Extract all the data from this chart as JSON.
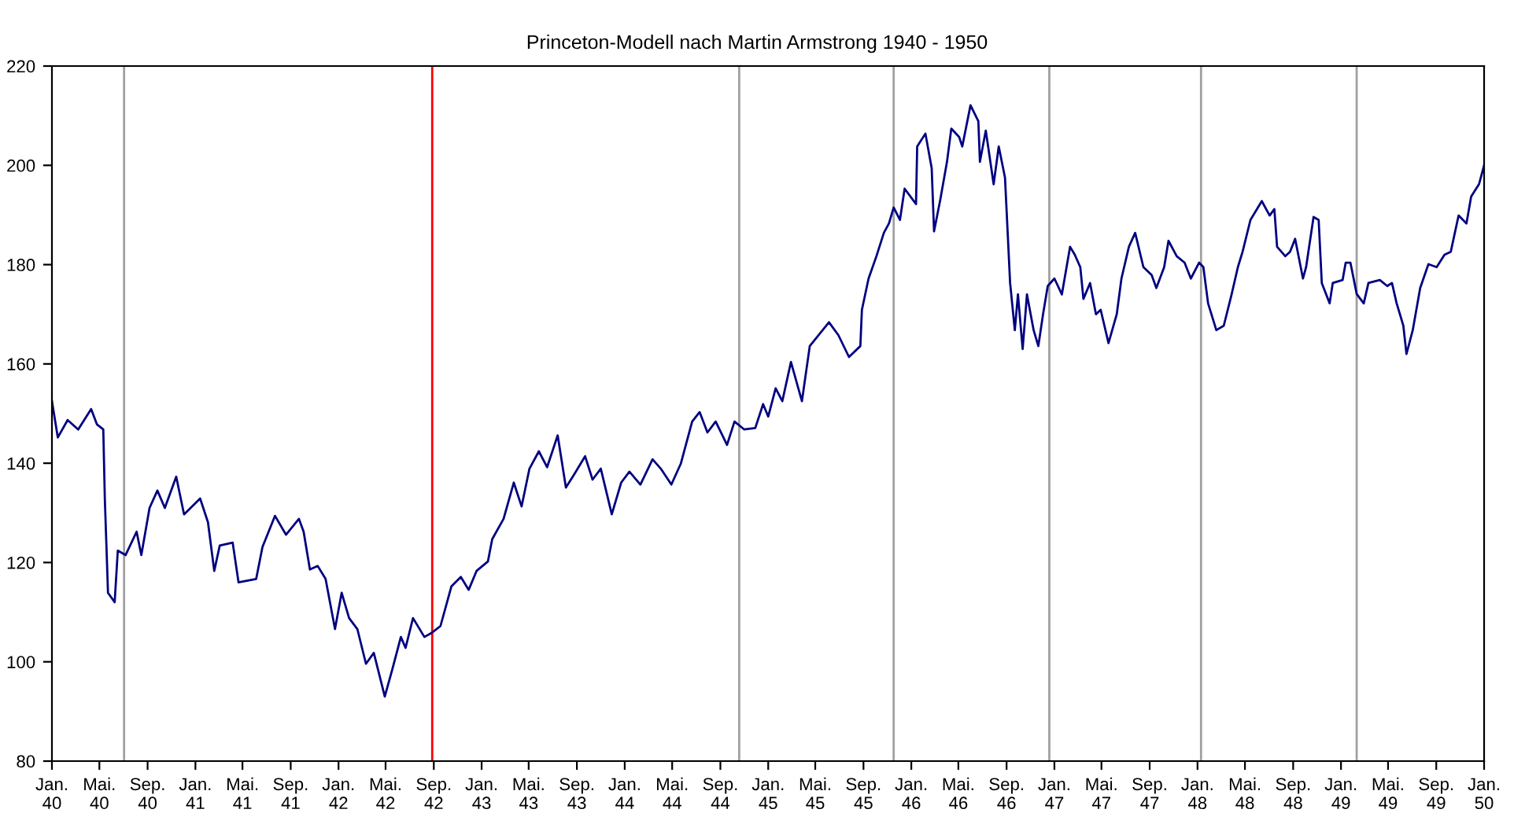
{
  "chart_data": {
    "type": "line",
    "title": "Princeton-Modell nach Martin Armstrong 1940 - 1950",
    "x": [
      "1940-01-01",
      "1940-01-16",
      "1940-02-10",
      "1940-03-08",
      "1940-04-10",
      "1940-04-25",
      "1940-05-11",
      "1940-05-15",
      "1940-05-19",
      "1940-05-23",
      "1940-06-09",
      "1940-06-17",
      "1940-07-07",
      "1940-08-04",
      "1940-08-16",
      "1940-09-06",
      "1940-09-26",
      "1940-10-15",
      "1940-11-13",
      "1940-12-03",
      "1941-01-13",
      "1941-02-02",
      "1941-02-18",
      "1941-03-04",
      "1941-04-06",
      "1941-04-21",
      "1941-06-05",
      "1941-06-21",
      "1941-07-23",
      "1941-08-20",
      "1941-09-22",
      "1941-10-04",
      "1941-10-20",
      "1941-11-09",
      "1941-11-29",
      "1941-12-23",
      "1942-01-09",
      "1942-01-28",
      "1942-02-18",
      "1942-03-12",
      "1942-04-01",
      "1942-04-29",
      "1942-05-19",
      "1942-06-09",
      "1942-06-21",
      "1942-07-10",
      "1942-08-08",
      "1942-08-28",
      "1942-09-18",
      "1942-10-16",
      "1942-11-09",
      "1942-11-29",
      "1942-12-19",
      "1943-01-17",
      "1943-01-28",
      "1943-02-26",
      "1943-03-24",
      "1943-04-13",
      "1943-05-03",
      "1943-05-27",
      "1943-06-17",
      "1943-07-14",
      "1943-08-04",
      "1943-08-24",
      "1943-09-22",
      "1943-10-11",
      "1943-11-01",
      "1943-11-29",
      "1943-12-23",
      "1944-01-13",
      "1944-02-10",
      "1944-03-12",
      "1944-04-02",
      "1944-04-29",
      "1944-05-23",
      "1944-06-21",
      "1944-07-10",
      "1944-07-30",
      "1944-08-20",
      "1944-09-18",
      "1944-10-07",
      "1944-11-01",
      "1944-11-29",
      "1944-12-19",
      "1945-01-01",
      "1945-01-20",
      "1945-02-06",
      "1945-02-28",
      "1945-03-28",
      "1945-04-17",
      "1945-06-05",
      "1945-06-29",
      "1945-07-26",
      "1945-08-24",
      "1945-08-28",
      "1945-09-14",
      "1945-10-04",
      "1945-10-23",
      "1945-11-05",
      "1945-11-17",
      "1945-12-03",
      "1945-12-15",
      "1946-01-13",
      "1946-01-16",
      "1946-02-06",
      "1946-02-22",
      "1946-02-28",
      "1946-03-16",
      "1946-04-02",
      "1946-04-13",
      "1946-05-03",
      "1946-05-11",
      "1946-06-01",
      "1946-06-21",
      "1946-06-25",
      "1946-07-10",
      "1946-07-30",
      "1946-08-12",
      "1946-08-28",
      "1946-09-10",
      "1946-09-22",
      "1946-09-30",
      "1946-10-12",
      "1946-10-23",
      "1946-11-09",
      "1946-11-21",
      "1946-12-03",
      "1946-12-15",
      "1947-01-01",
      "1947-01-20",
      "1947-02-10",
      "1947-02-22",
      "1947-03-08",
      "1947-03-16",
      "1947-04-02",
      "1947-04-17",
      "1947-04-29",
      "1947-05-19",
      "1947-06-09",
      "1947-06-21",
      "1947-07-10",
      "1947-07-26",
      "1947-08-16",
      "1947-09-06",
      "1947-09-18",
      "1947-10-08",
      "1947-10-19",
      "1947-11-09",
      "1947-11-29",
      "1947-12-15",
      "1948-01-05",
      "1948-01-16",
      "1948-01-28",
      "1948-02-18",
      "1948-03-08",
      "1948-03-28",
      "1948-04-13",
      "1948-04-25",
      "1948-05-15",
      "1948-06-13",
      "1948-07-03",
      "1948-07-15",
      "1948-07-22",
      "1948-08-12",
      "1948-08-24",
      "1948-09-06",
      "1948-09-26",
      "1948-10-04",
      "1948-10-23",
      "1948-11-05",
      "1948-11-13",
      "1948-12-03",
      "1948-12-11",
      "1949-01-05",
      "1949-01-13",
      "1949-01-25",
      "1949-02-10",
      "1949-02-28",
      "1949-03-12",
      "1949-04-10",
      "1949-04-29",
      "1949-05-11",
      "1949-05-23",
      "1949-06-09",
      "1949-06-17",
      "1949-07-03",
      "1949-07-22",
      "1949-08-12",
      "1949-09-02",
      "1949-09-22",
      "1949-10-08",
      "1949-10-28",
      "1949-11-17",
      "1949-11-29",
      "1949-12-19",
      "1950-01-01"
    ],
    "series": [
      {
        "color": "#000080",
        "values": [
          152.5,
          145.2,
          148.7,
          146.8,
          150.9,
          147.8,
          146.8,
          132.6,
          123.4,
          113.9,
          112.0,
          122.4,
          121.5,
          126.2,
          121.5,
          131.0,
          134.5,
          131.0,
          137.3,
          129.7,
          132.9,
          128.1,
          118.3,
          123.4,
          124.0,
          116.0,
          116.7,
          123.1,
          129.4,
          125.6,
          128.8,
          126.2,
          118.6,
          119.3,
          116.7,
          106.6,
          113.9,
          108.8,
          106.6,
          99.6,
          101.8,
          93.0,
          98.7,
          105.0,
          102.8,
          108.8,
          105.0,
          105.9,
          107.2,
          115.2,
          117.1,
          114.5,
          118.3,
          120.2,
          124.7,
          128.8,
          136.1,
          131.3,
          138.9,
          142.4,
          139.2,
          145.6,
          135.1,
          137.6,
          141.4,
          136.7,
          138.9,
          129.7,
          136.1,
          138.3,
          135.7,
          140.8,
          138.9,
          135.7,
          139.9,
          148.4,
          150.3,
          146.2,
          148.4,
          143.7,
          148.4,
          146.8,
          147.1,
          151.9,
          149.4,
          155.1,
          152.5,
          160.4,
          152.5,
          163.6,
          168.4,
          165.8,
          161.4,
          163.6,
          170.9,
          177.2,
          181.7,
          186.4,
          188.3,
          191.5,
          189.0,
          195.3,
          192.2,
          203.8,
          206.4,
          199.4,
          186.7,
          193.1,
          200.7,
          207.4,
          205.7,
          203.8,
          212.1,
          208.9,
          200.7,
          207.0,
          196.2,
          203.8,
          197.5,
          176.3,
          166.8,
          174.0,
          163.0,
          174.0,
          166.8,
          163.6,
          170.0,
          175.7,
          177.2,
          174.0,
          183.6,
          182.0,
          179.5,
          173.1,
          176.3,
          170.0,
          170.9,
          164.2,
          170.0,
          177.2,
          183.6,
          186.4,
          179.5,
          177.9,
          175.3,
          179.5,
          184.8,
          181.7,
          180.4,
          177.2,
          180.4,
          179.5,
          172.2,
          166.8,
          167.7,
          174.0,
          179.5,
          182.6,
          189.0,
          192.8,
          189.9,
          191.2,
          183.6,
          181.7,
          182.6,
          185.2,
          177.2,
          179.5,
          189.6,
          189.0,
          176.3,
          172.2,
          176.3,
          176.9,
          180.4,
          180.4,
          174.1,
          172.2,
          176.3,
          176.9,
          175.7,
          176.3,
          172.2,
          167.7,
          162.0,
          166.8,
          175.3,
          180.1,
          179.5,
          182.0,
          182.6,
          189.9,
          188.3,
          193.7,
          196.2,
          200.0
        ]
      }
    ],
    "xlim": [
      "1940-01-01",
      "1950-01-01"
    ],
    "xticks": [
      {
        "value": "1940-01-01",
        "label": "Jan.\n40"
      },
      {
        "value": "1940-05-01",
        "label": "Mai.\n40"
      },
      {
        "value": "1940-09-01",
        "label": "Sep.\n40"
      },
      {
        "value": "1941-01-01",
        "label": "Jan.\n41"
      },
      {
        "value": "1941-05-01",
        "label": "Mai.\n41"
      },
      {
        "value": "1941-09-01",
        "label": "Sep.\n41"
      },
      {
        "value": "1942-01-01",
        "label": "Jan.\n42"
      },
      {
        "value": "1942-05-01",
        "label": "Mai.\n42"
      },
      {
        "value": "1942-09-01",
        "label": "Sep.\n42"
      },
      {
        "value": "1943-01-01",
        "label": "Jan.\n43"
      },
      {
        "value": "1943-05-01",
        "label": "Mai.\n43"
      },
      {
        "value": "1943-09-01",
        "label": "Sep.\n43"
      },
      {
        "value": "1944-01-01",
        "label": "Jan.\n44"
      },
      {
        "value": "1944-05-01",
        "label": "Mai.\n44"
      },
      {
        "value": "1944-09-01",
        "label": "Sep.\n44"
      },
      {
        "value": "1945-01-01",
        "label": "Jan.\n45"
      },
      {
        "value": "1945-05-01",
        "label": "Mai.\n45"
      },
      {
        "value": "1945-09-01",
        "label": "Sep.\n45"
      },
      {
        "value": "1946-01-01",
        "label": "Jan.\n46"
      },
      {
        "value": "1946-05-01",
        "label": "Mai.\n46"
      },
      {
        "value": "1946-09-01",
        "label": "Sep.\n46"
      },
      {
        "value": "1947-01-01",
        "label": "Jan.\n47"
      },
      {
        "value": "1947-05-01",
        "label": "Mai.\n47"
      },
      {
        "value": "1947-09-01",
        "label": "Sep.\n47"
      },
      {
        "value": "1948-01-01",
        "label": "Jan.\n48"
      },
      {
        "value": "1948-05-01",
        "label": "Mai.\n48"
      },
      {
        "value": "1948-09-01",
        "label": "Sep.\n48"
      },
      {
        "value": "1949-01-01",
        "label": "Jan.\n49"
      },
      {
        "value": "1949-05-01",
        "label": "Mai.\n49"
      },
      {
        "value": "1949-09-01",
        "label": "Sep.\n49"
      },
      {
        "value": "1950-01-01",
        "label": "Jan.\n50"
      }
    ],
    "ylim": [
      80,
      220
    ],
    "yticks": [
      80,
      100,
      120,
      140,
      160,
      180,
      200,
      220
    ],
    "ref_lines": [
      {
        "axis": "x",
        "value": "1940-07-03",
        "color": "#a0a0a0"
      },
      {
        "axis": "x",
        "value": "1942-08-28",
        "color": "#ff0000"
      },
      {
        "axis": "x",
        "value": "1944-10-19",
        "color": "#a0a0a0"
      },
      {
        "axis": "x",
        "value": "1945-11-17",
        "color": "#a0a0a0"
      },
      {
        "axis": "x",
        "value": "1946-12-19",
        "color": "#a0a0a0"
      },
      {
        "axis": "x",
        "value": "1948-01-10",
        "color": "#a0a0a0"
      },
      {
        "axis": "x",
        "value": "1949-02-10",
        "color": "#a0a0a0"
      }
    ],
    "grid": false,
    "legend": false
  }
}
